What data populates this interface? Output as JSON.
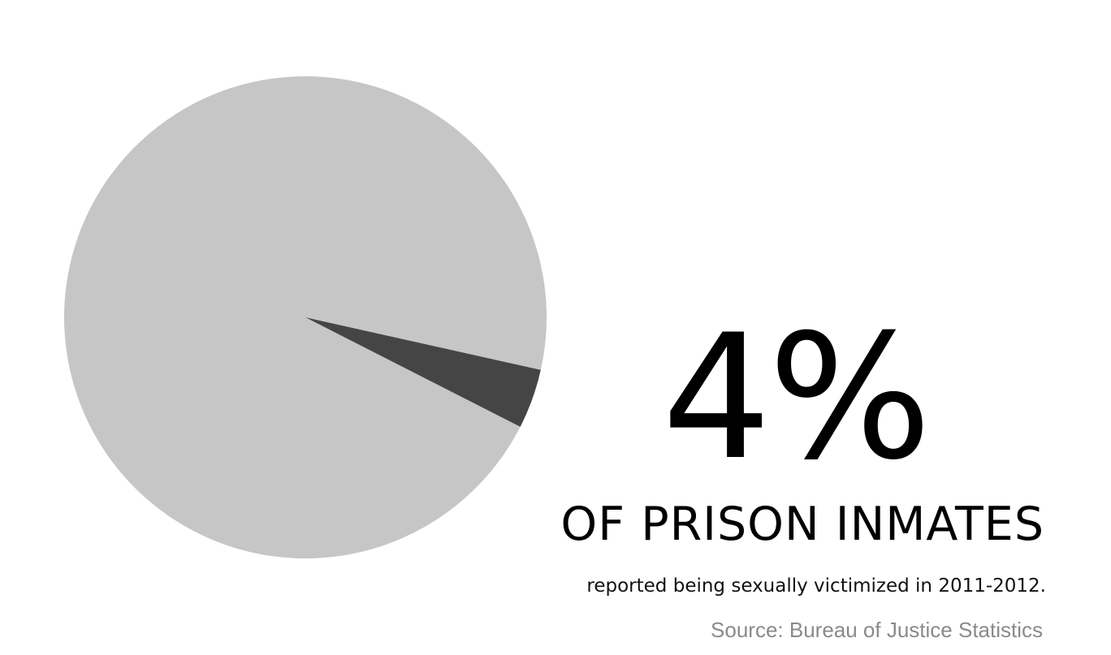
{
  "chart_data": {
    "type": "pie",
    "values": [
      4,
      96
    ],
    "colors": [
      "#454545",
      "#c6c6c6"
    ],
    "title": "",
    "legend": "none"
  },
  "stat": {
    "value": "4%",
    "headline": "OF PRISON INMATES",
    "description": "reported being sexually victimized in 2011-2012.",
    "source": "Source: Bureau of Justice Statistics"
  }
}
